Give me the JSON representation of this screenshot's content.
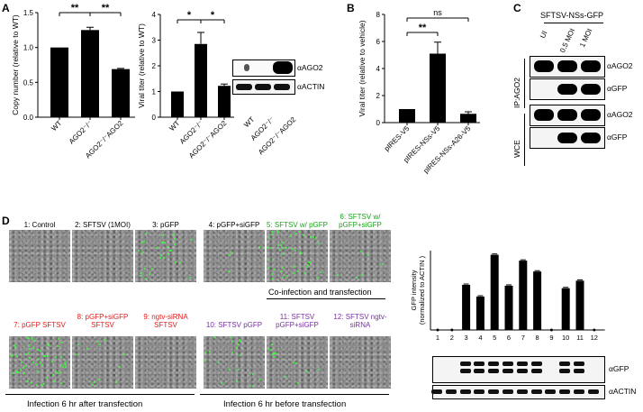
{
  "panels": {
    "A": "A",
    "B": "B",
    "C": "C",
    "D": "D"
  },
  "panelA": {
    "chart1": {
      "ylabel": "Copy number (relative to WT)",
      "yticks": [
        "0.0",
        "0.5",
        "1.0",
        "1.5"
      ],
      "categories": [
        "WT",
        "AGO2⁻/⁻",
        "AGO2⁻/⁻AGO2"
      ],
      "sig": [
        "**",
        "**"
      ]
    },
    "chart2": {
      "ylabel": "Viral titer (relative to WT)",
      "yticks": [
        "0",
        "1",
        "2",
        "3",
        "4"
      ],
      "categories": [
        "WT",
        "AGO2⁻/⁻",
        "AGO2⁻/⁻AGO2"
      ],
      "sig": [
        "*",
        "*"
      ]
    },
    "blot": {
      "labels": [
        "αAGO2",
        "αACTIN"
      ],
      "lanes": [
        "WT",
        "AGO2⁻/⁻",
        "AGO2⁻/⁻AGO2"
      ]
    }
  },
  "panelB": {
    "ylabel": "Viral titer (relative to vehicle)",
    "yticks": [
      "0",
      "2",
      "4",
      "6",
      "8"
    ],
    "categories": [
      "pIRES-V5",
      "pIRES-NSs-V5",
      "pIRES-NSs-A26-V5"
    ],
    "sig": [
      "**",
      "ns"
    ]
  },
  "panelC": {
    "title": "SFTSV-NSs-GFP",
    "lanes": [
      "UI",
      "0.5 MOI",
      "1 MOI"
    ],
    "groups": [
      "IP:AGO2",
      "WCE"
    ],
    "labels": [
      "αAGO2",
      "αGFP",
      "αAGO2",
      "αGFP"
    ]
  },
  "panelD": {
    "images": [
      {
        "label": "1: Control",
        "color": "#000000",
        "green": 0
      },
      {
        "label": "2: SFTSV (1MOI)",
        "color": "#000000",
        "green": 0
      },
      {
        "label": "3: pGFP",
        "color": "#000000",
        "green": 30
      },
      {
        "label": "4: pGFP+siGFP",
        "color": "#000000",
        "green": 4
      },
      {
        "label": "5: SFTSV w/ pGFP",
        "color": "#1aa51a",
        "green": 45
      },
      {
        "label": "6: SFTSV w/ pGFP+siGFP",
        "color": "#1aa51a",
        "green": 6
      },
      {
        "label": "7: pGFP SFTSV",
        "color": "#e31a1a",
        "green": 60
      },
      {
        "label": "8: pGFP+siGFP SFTSV",
        "color": "#e31a1a",
        "green": 12
      },
      {
        "label": "9: ngtv-siRNA SFTSV",
        "color": "#e31a1a",
        "green": 0
      },
      {
        "label": "10: SFTSV pGFP",
        "color": "#7a2fa5",
        "green": 20
      },
      {
        "label": "11: SFTSV pGFP+siGFP",
        "color": "#7a2fa5",
        "green": 14
      },
      {
        "label": "12: SFTSV ngtv-siRNA",
        "color": "#7a2fa5",
        "green": 0
      }
    ],
    "captions": {
      "coinf": "Co-infection and transfection",
      "after": "Infection 6 hr after transfection",
      "before": "Infection 6 hr before transfection"
    },
    "chart": {
      "ylabel": "GFP intensity (normalized to ACTIN )",
      "lanes": [
        "1",
        "2",
        "3",
        "4",
        "5",
        "6",
        "7",
        "8",
        "9",
        "10",
        "11",
        "12"
      ]
    },
    "blot": {
      "labels": [
        "αGFP",
        "αACTIN"
      ]
    }
  },
  "chart_data": [
    {
      "type": "bar",
      "title": "",
      "ylabel": "Copy number (relative to WT)",
      "categories": [
        "WT",
        "AGO2⁻/⁻",
        "AGO2⁻/⁻AGO2"
      ],
      "values": [
        1.0,
        1.25,
        0.69
      ],
      "errors": [
        0,
        0.04,
        0.01
      ],
      "ylim": [
        0,
        1.5
      ]
    },
    {
      "type": "bar",
      "title": "",
      "ylabel": "Viral titer (relative to WT)",
      "categories": [
        "WT",
        "AGO2⁻/⁻",
        "AGO2⁻/⁻AGO2"
      ],
      "values": [
        1.0,
        2.85,
        1.22
      ],
      "errors": [
        0,
        0.45,
        0.07
      ],
      "ylim": [
        0,
        4
      ]
    },
    {
      "type": "bar",
      "title": "",
      "ylabel": "Viral titer (relative to vehicle)",
      "categories": [
        "pIRES-V5",
        "pIRES-NSs-V5",
        "pIRES-NSs-A26-V5"
      ],
      "values": [
        1.0,
        5.1,
        0.65
      ],
      "errors": [
        0,
        0.85,
        0.15
      ],
      "ylim": [
        0,
        8
      ]
    },
    {
      "type": "bar",
      "title": "",
      "ylabel": "GFP intensity (normalized to ACTIN )",
      "categories": [
        "1",
        "2",
        "3",
        "4",
        "5",
        "6",
        "7",
        "8",
        "9",
        "10",
        "11",
        "12"
      ],
      "values": [
        0,
        0,
        10.8,
        8.0,
        18.0,
        10.6,
        16.6,
        14.0,
        0,
        10.0,
        11.8,
        0
      ],
      "errors": [
        0,
        0,
        0.2,
        0.2,
        0.2,
        0.2,
        0.2,
        0.2,
        0,
        0.2,
        0.2,
        0
      ],
      "ylim": [
        0,
        19
      ]
    }
  ]
}
